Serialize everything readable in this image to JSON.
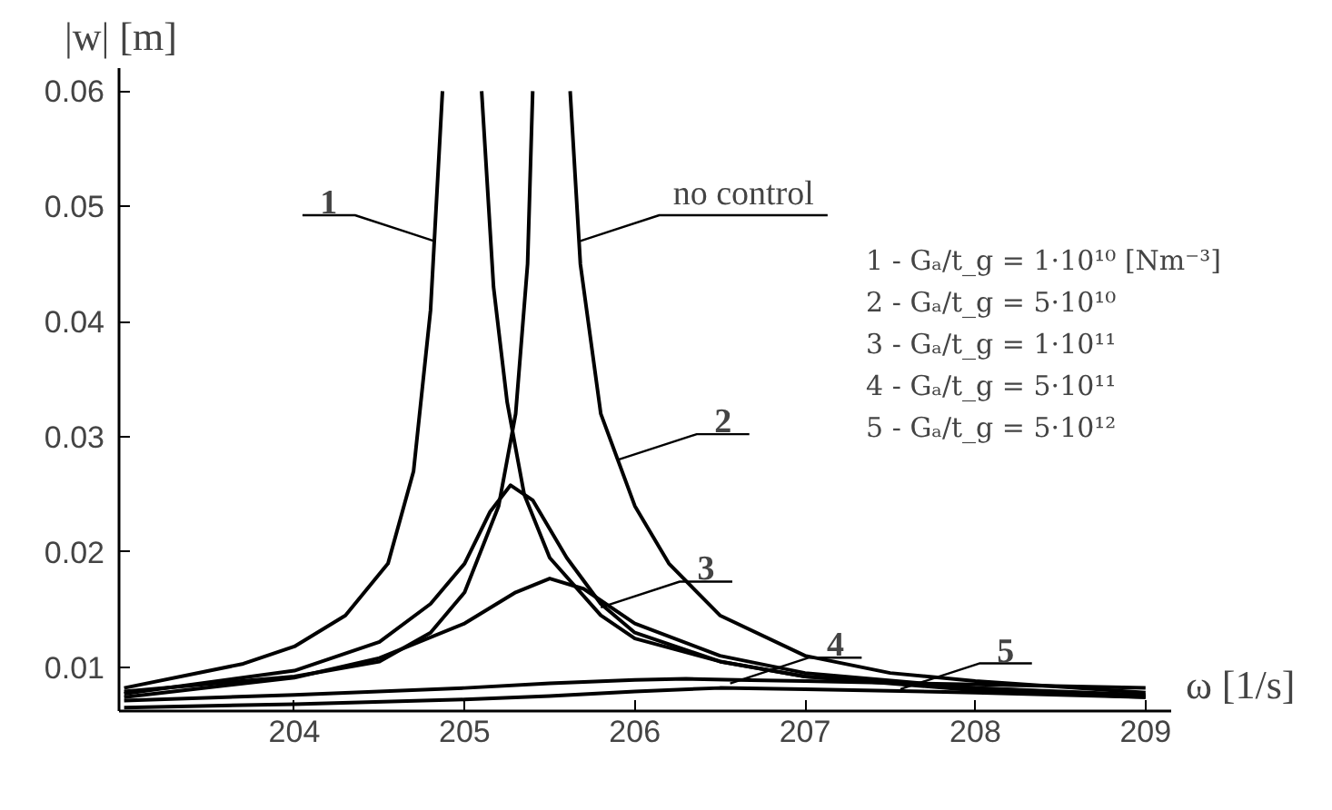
{
  "chart_data": {
    "type": "line",
    "xlabel": "ω [1/s]",
    "ylabel": "|w| [m]",
    "xlim": [
      202.97,
      209.15
    ],
    "ylim": [
      0.0062,
      0.062
    ],
    "xticks": [
      204,
      205,
      206,
      207,
      208,
      209
    ],
    "yticks": [
      0.01,
      0.02,
      0.03,
      0.04,
      0.05,
      0.06
    ],
    "grid": false,
    "marker": "none",
    "line_style": "solid",
    "series": [
      {
        "color": "#000000",
        "x": [
          203,
          204,
          204.5,
          204.8,
          205.0,
          205.2,
          205.3,
          205.37,
          205.4,
          205.5,
          205.62,
          205.68,
          205.8,
          206,
          206.2,
          206.5,
          207,
          207.5,
          208,
          209
        ],
        "values": [
          0.0079,
          0.0092,
          0.0105,
          0.013,
          0.0165,
          0.024,
          0.032,
          0.045,
          0.06,
          null,
          0.06,
          0.045,
          0.032,
          0.024,
          0.019,
          0.0145,
          0.011,
          0.0095,
          0.0088,
          0.0078
        ]
      },
      {
        "color": "#000000",
        "x": [
          203,
          203.7,
          204,
          204.3,
          204.55,
          204.7,
          204.8,
          204.87,
          205.0,
          205.1,
          205.17,
          205.25,
          205.35,
          205.5,
          205.8,
          206,
          206.5,
          207,
          208,
          209
        ],
        "values": [
          0.0082,
          0.0103,
          0.0118,
          0.0145,
          0.019,
          0.027,
          0.041,
          0.06,
          null,
          0.06,
          0.043,
          0.033,
          0.025,
          0.0195,
          0.0145,
          0.0125,
          0.0105,
          0.0092,
          0.0082,
          0.0075
        ]
      },
      {
        "color": "#000000",
        "x": [
          203,
          204,
          204.5,
          204.8,
          205.0,
          205.15,
          205.27,
          205.4,
          205.6,
          205.8,
          206,
          206.5,
          207,
          208,
          209
        ],
        "values": [
          0.0077,
          0.0097,
          0.0122,
          0.0155,
          0.019,
          0.0235,
          0.0258,
          0.0245,
          0.0195,
          0.0155,
          0.013,
          0.0105,
          0.0092,
          0.008,
          0.0074
        ]
      },
      {
        "color": "#000000",
        "x": [
          203,
          204,
          204.5,
          205,
          205.3,
          205.5,
          205.7,
          206,
          206.5,
          207,
          208,
          209
        ],
        "values": [
          0.0074,
          0.0091,
          0.0108,
          0.0138,
          0.0165,
          0.0177,
          0.0168,
          0.0138,
          0.011,
          0.0095,
          0.0082,
          0.0076
        ]
      },
      {
        "color": "#000000",
        "x": [
          203,
          204,
          205,
          205.5,
          206,
          206.3,
          206.6,
          207,
          208,
          209
        ],
        "values": [
          0.0071,
          0.0076,
          0.0082,
          0.0086,
          0.0089,
          0.009,
          0.0089,
          0.0088,
          0.0085,
          0.0082
        ]
      },
      {
        "color": "#000000",
        "x": [
          203,
          204,
          205,
          205.5,
          206,
          206.5,
          207,
          208,
          209
        ],
        "values": [
          0.0065,
          0.0068,
          0.0072,
          0.0075,
          0.0079,
          0.0082,
          0.0081,
          0.0078,
          0.0074
        ]
      }
    ],
    "annotations": [
      {
        "text": "1",
        "x": 204.82,
        "y": 0.047
      },
      {
        "text": "no control",
        "x": 205.68,
        "y": 0.047
      },
      {
        "text": "2",
        "x": 205.9,
        "y": 0.028
      },
      {
        "text": "3",
        "x": 205.8,
        "y": 0.0152
      },
      {
        "text": "4",
        "x": 206.56,
        "y": 0.0086
      },
      {
        "text": "5",
        "x": 207.56,
        "y": 0.0081
      },
      "1 - Gₐ/t_g = 1·10¹⁰ [Nm⁻³]",
      "2 - Gₐ/t_g = 5·10¹⁰",
      "3 - Gₐ/t_g = 1·10¹¹",
      "4 - Gₐ/t_g = 5·10¹¹",
      "5 - Gₐ/t_g = 5·10¹²"
    ]
  }
}
